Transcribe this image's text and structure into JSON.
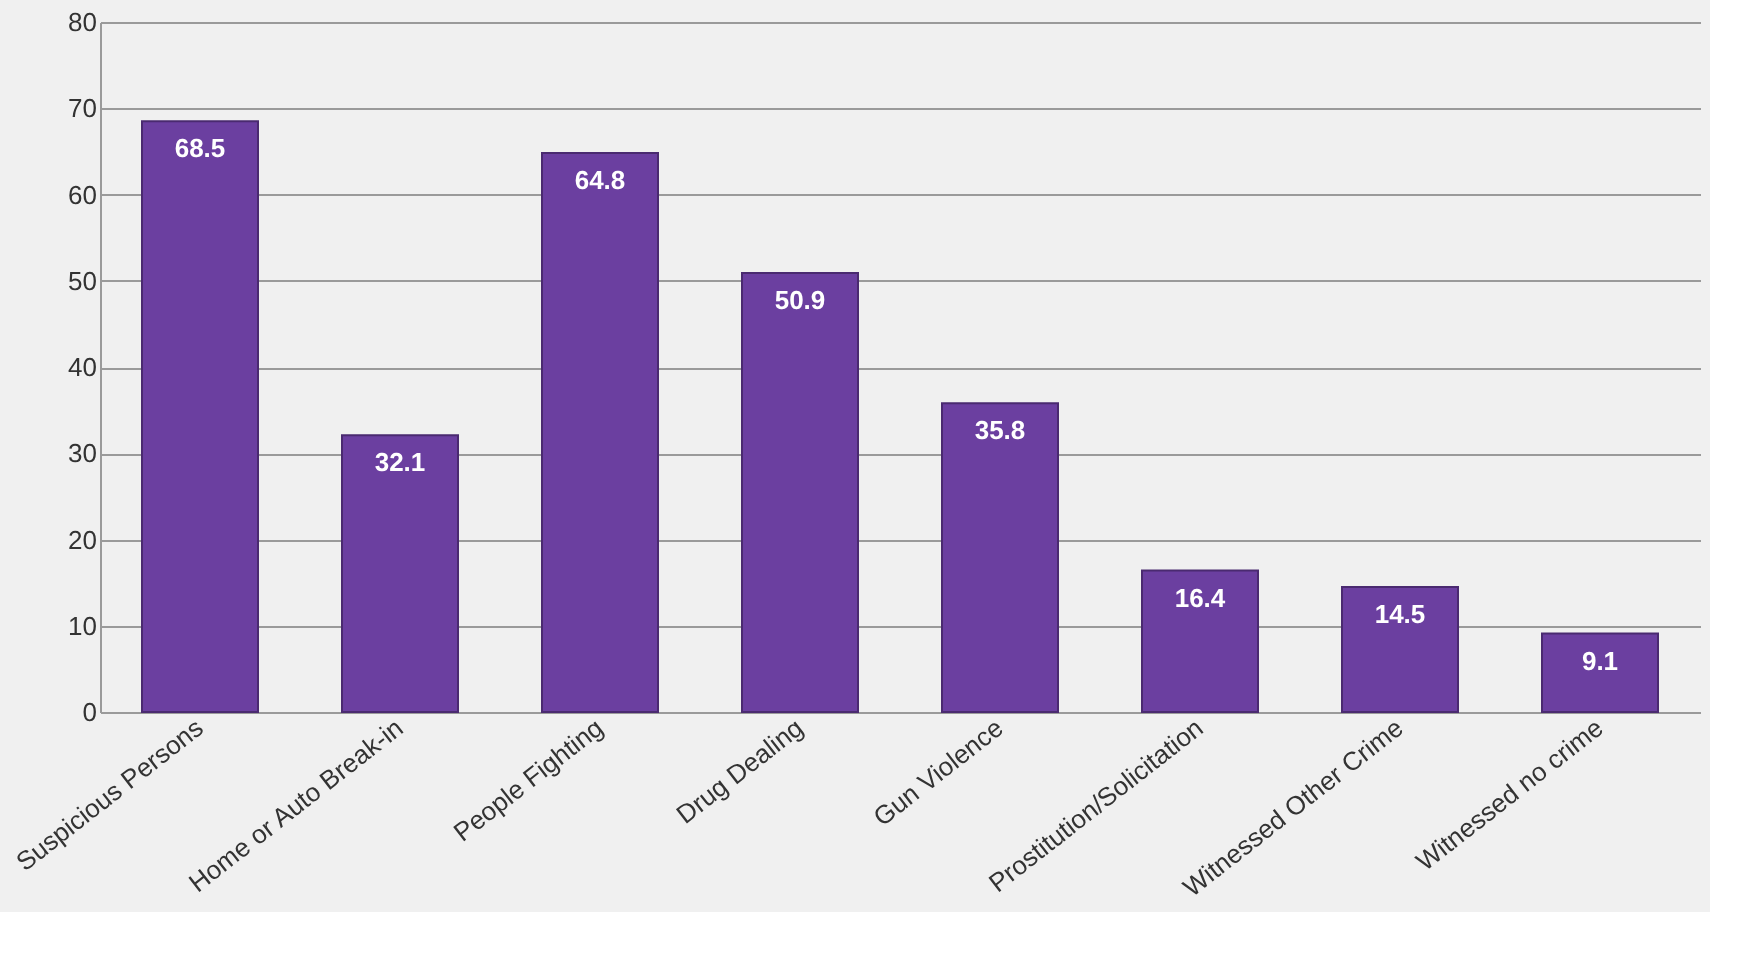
{
  "chart_data": {
    "type": "bar",
    "categories": [
      "Suspicious Persons",
      "Home or Auto Break-in",
      "People Fighting",
      "Drug Dealing",
      "Gun Violence",
      "Prostitution/Solicitation",
      "Witnessed Other Crime",
      "Witnessed no crime"
    ],
    "values": [
      68.5,
      32.1,
      64.8,
      50.9,
      35.8,
      16.4,
      14.5,
      9.1
    ],
    "color": "#6b3fa0",
    "ylim": [
      0,
      80
    ],
    "yticks": [
      0,
      10,
      20,
      30,
      40,
      50,
      60,
      70,
      80
    ],
    "grid": "y",
    "data_labels": true
  }
}
